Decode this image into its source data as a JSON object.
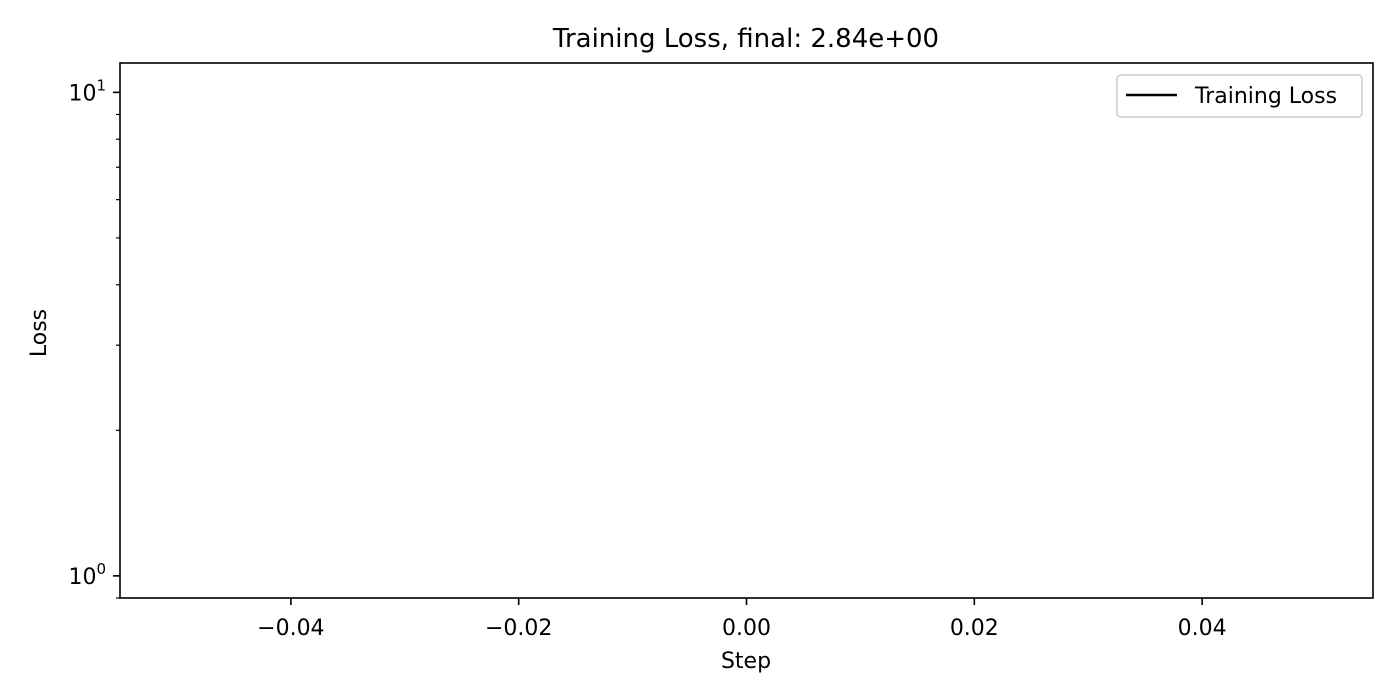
{
  "chart_data": {
    "type": "line",
    "title": "Training Loss, final: 2.84e+00",
    "xlabel": "Step",
    "ylabel": "Loss",
    "xlim": [
      -0.055,
      0.055
    ],
    "ylim": [
      0.9,
      11.5
    ],
    "yscale": "log",
    "grid": false,
    "legend_position": "top-right",
    "x_ticks": [
      {
        "value": -0.04,
        "label": "−0.04"
      },
      {
        "value": -0.02,
        "label": "−0.02"
      },
      {
        "value": 0.0,
        "label": "0.00"
      },
      {
        "value": 0.02,
        "label": "0.02"
      },
      {
        "value": 0.04,
        "label": "0.04"
      }
    ],
    "y_major_ticks": [
      {
        "value": 1,
        "base": "10",
        "exp": "0"
      },
      {
        "value": 10,
        "base": "10",
        "exp": "1"
      }
    ],
    "y_minor_ticks": [
      0.9,
      2,
      3,
      4,
      5,
      6,
      7,
      8,
      9
    ],
    "series": [
      {
        "name": "Training Loss",
        "color": "#000000",
        "x": [
          0
        ],
        "y": [
          2.84
        ]
      }
    ]
  }
}
